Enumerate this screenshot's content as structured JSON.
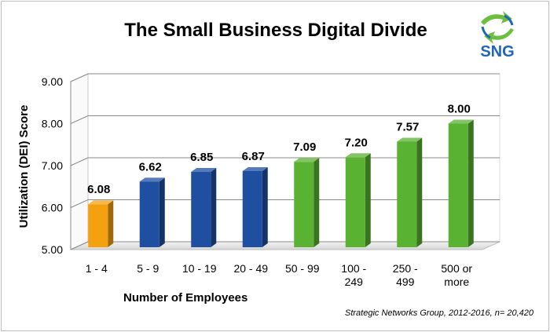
{
  "colors": {
    "orange": "#F5A00F",
    "blue": "#1F4FA0",
    "green": "#5AB233",
    "logo_blue": "#1F66B8",
    "logo_green": "#6CBF3D"
  },
  "logo": {
    "text": "SNG"
  },
  "chart_data": {
    "type": "bar",
    "title": "The Small Business Digital Divide",
    "xlabel": "Number of Employees",
    "ylabel": "Utilization (DEI) Score",
    "ylim": [
      5,
      9
    ],
    "yticks": [
      "5.00",
      "6.00",
      "7.00",
      "8.00",
      "9.00"
    ],
    "grid": true,
    "categories": [
      [
        "1 - 4"
      ],
      [
        "5 - 9"
      ],
      [
        "10 - 19"
      ],
      [
        "20 - 49"
      ],
      [
        "50 - 99"
      ],
      [
        "100 -",
        "249"
      ],
      [
        "250 -",
        "499"
      ],
      [
        "500 or",
        "more"
      ]
    ],
    "values": [
      6.08,
      6.62,
      6.85,
      6.87,
      7.09,
      7.2,
      7.57,
      8.0
    ],
    "data_labels": [
      "6.08",
      "6.62",
      "6.85",
      "6.87",
      "7.09",
      "7.20",
      "7.57",
      "8.00"
    ],
    "bar_colors": [
      "orange",
      "blue",
      "blue",
      "blue",
      "green",
      "green",
      "green",
      "green"
    ],
    "source": "Strategic Networks Group, 2012-2016, n= 20,420"
  }
}
